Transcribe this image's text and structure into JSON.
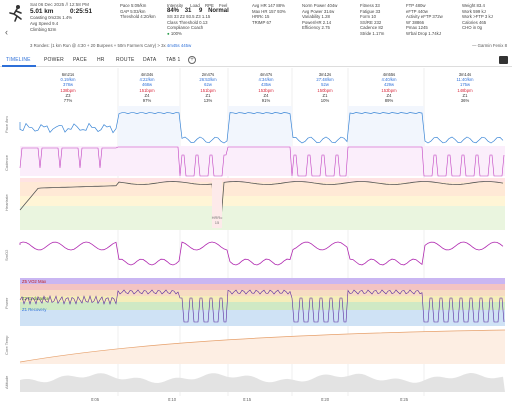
{
  "header": {
    "date": "Sat 06 Dec 2025 // 12:58 PM",
    "distance": "5.01 km",
    "duration": "0:25:51",
    "coasting": "Coasting 0m23s 1.4%",
    "avg_speed": "Avg Speed 9.4",
    "climbing": "Climbing 52m",
    "col1": [
      "Pace 5:09/km",
      "GAP 5:03/km",
      "Threshold 4:20/km"
    ],
    "col2a": [
      "Intensity",
      "84%"
    ],
    "col2b": [
      "Load",
      "31"
    ],
    "col2c": [
      "RPE",
      "9"
    ],
    "col2d": [
      "Feel",
      "Normal"
    ],
    "col2e": "SS 33 Z2 93.5 Z3 1.15",
    "col2f": "Class Threshold 0.13",
    "col2g": "Compliance Coach",
    "col2h": "100%",
    "col3": [
      "Avg HR 147 88%",
      "Max HR 157 93%",
      "HRRc 15",
      "TRIMP 67"
    ],
    "col4": [
      "Norm Power 404w",
      "Avg Power 314w",
      "Variability 1.28",
      "Power/HR 2.14",
      "Efficiency 2.75"
    ],
    "col5": [
      "Fitness 33",
      "Fatigue 33",
      "Form 10",
      "SS/RE 232",
      "Cadence 82",
      "Stride 1.17m"
    ],
    "col6": [
      "FTP 480w",
      "eFTP 440w",
      "Activity eFTP 372w",
      "W' 38866",
      "Pmax 1245",
      "W'bal Drop 1.74kJ"
    ],
    "col7": [
      "Weight 83.4",
      "Work 599 kJ",
      "Work >FTP 3 kJ",
      "Calories 465",
      "CHO in 0g"
    ]
  },
  "workout": {
    "text": "3 Rondes: (1 km Run @ 4:30 + 20 Burpees + 50m Farmers Carry)",
    "suffix": " > 3x",
    "highlight": " 4m45s 445w",
    "group": "Garmin Fenix 8"
  },
  "tabs": [
    "TIMELINE",
    "POWER",
    "PACE",
    "HR",
    "ROUTE",
    "DATA",
    "TAB 1"
  ],
  "intervals": [
    {
      "time": "6m21s",
      "dist": "0.19/km",
      "pw": "378w",
      "hr": "138bpm",
      "zone": "Z3",
      "pct": "77%"
    },
    {
      "time": "4m34s",
      "dist": "4:22/km",
      "pw": "468w",
      "hr": "151bpm",
      "zone": "Z4",
      "pct": "97%"
    },
    {
      "time": "2m47s",
      "dist": "26:53/km",
      "pw": "62w",
      "hr": "151bpm",
      "zone": "Z1",
      "pct": "13%"
    },
    {
      "time": "4m47s",
      "dist": "4:34/km",
      "pw": "435w",
      "hr": "153bpm",
      "zone": "Z4",
      "pct": "91%"
    },
    {
      "time": "3m12s",
      "dist": "27:48/km",
      "pw": "52w",
      "hr": "150bpm",
      "zone": "Z1",
      "pct": "10%"
    },
    {
      "time": "4m55s",
      "dist": "4:40/km",
      "pw": "429w",
      "hr": "153bpm",
      "zone": "Z4",
      "pct": "89%"
    },
    {
      "time": "3m14s",
      "dist": "11:40/km",
      "pw": "175w",
      "hr": "148bpm",
      "zone": "Z1",
      "pct": "36%"
    }
  ],
  "charts": {
    "y_labels": [
      "Pace /km",
      "Cadence",
      "Heartrate",
      "SmO2",
      "Power",
      "Core Temp",
      "Altitude"
    ],
    "zones": [
      "Z5 VO2 Max",
      "Z2 Endurance",
      "Z1 Recovery"
    ],
    "pause_label": "HRRc",
    "pause_value": "15",
    "time_ticks": [
      "0:05",
      "0:10",
      "0:15",
      "0:20",
      "0:25"
    ]
  }
}
